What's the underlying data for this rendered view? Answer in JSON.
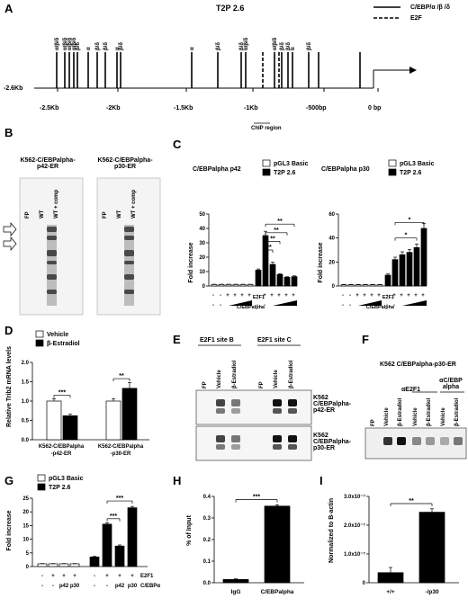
{
  "panelA": {
    "letter": "A",
    "title": "T2P 2.6",
    "legend_solid": "C/EBP/α /β /δ",
    "legend_dashed": "E2F",
    "start_label": "-2.6Kb",
    "axis_labels": [
      "-2.5Kb",
      "-2Kb",
      "-1.5Kb",
      "-1Kb",
      "-500bp",
      "0 bp"
    ],
    "chip_label": "ChIP region",
    "site_labels": [
      "α/β/δ",
      "α/β/δ",
      "α/β/δ",
      "α/β/δ",
      "β/δ",
      "α",
      "β/δ",
      "β/δ",
      "α",
      "β/δ",
      "α",
      "β/δ",
      "β/δ",
      "α/β/δ",
      "α/β/δ",
      "β/δ",
      "β/δ",
      "α",
      "β/δ"
    ]
  },
  "panelB": {
    "letter": "B",
    "blot1_title": "K562-C/EBPalpha-p42-ER",
    "blot2_title": "K562-C/EBPalpha-p30-ER",
    "lanes": [
      "FP",
      "WT",
      "WT + comp"
    ]
  },
  "panelC": {
    "letter": "C",
    "legend": [
      "pGL3 Basic",
      "T2P 2.6"
    ],
    "row_e2f1": "E2F1",
    "row_cebp": "C/EBPalpha",
    "chart_titles": [
      "C/EBPalpha p42",
      "C/EBPalpha p30"
    ],
    "ylabel": "Fold increase",
    "sig": [
      "**",
      "**",
      "**",
      "**",
      "*",
      "*"
    ]
  },
  "panelD": {
    "letter": "D",
    "legend": [
      "Vehicle",
      "β-Estradiol"
    ],
    "ylabel": "Relative Trib2 mRNA levels",
    "groups": [
      "K562-C/EBPalpha -p42-ER",
      "K562-C/EBPalpha -p30-ER"
    ],
    "sig": [
      "***",
      "**"
    ]
  },
  "panelE": {
    "letter": "E",
    "site_b": "E2F1 site B",
    "site_c": "E2F1 site C",
    "lanes": [
      "FP",
      "Vehicle",
      "β-Estradiol",
      "FP",
      "Vehicle",
      "β-Estradiol"
    ],
    "row1": "K562 C/EBPalpha- p42-ER",
    "row2": "K562 C/EBPalpha- p30-ER"
  },
  "panelF": {
    "letter": "F",
    "title": "K562 C/EBPalpha-p30-ER",
    "ab1": "αE2F1",
    "ab2": "αC/EBP alpha",
    "lanes": [
      "FP",
      "Vehicle",
      "β-Estradiol",
      "Vehicle",
      "β-Estradiol",
      "Vehicle",
      "β-Estradiol"
    ]
  },
  "panelG": {
    "letter": "G",
    "legend": [
      "pGL3 Basic",
      "T2P 2.6"
    ],
    "ylabel": "Fold increase",
    "row_e2f1_label": "E2F1",
    "row_cebp_label": "C/EBPα",
    "row_e2f1": [
      "-",
      "+",
      "+",
      "+",
      "-",
      "+",
      "+",
      "+"
    ],
    "row_cebp": [
      "-",
      "-",
      "p42",
      "p30",
      "-",
      "-",
      "p42",
      "p30"
    ],
    "sig": [
      "***",
      "***"
    ]
  },
  "panelH": {
    "letter": "H",
    "ylabel": "% of Input",
    "sig": "***"
  },
  "panelI": {
    "letter": "I",
    "ylabel": "Normalized to B-actin",
    "sig": "**"
  },
  "chart_data": [
    {
      "id": "C-p42",
      "type": "bar",
      "title": "C/EBPalpha p42",
      "ylabel": "Fold increase",
      "ylim": [
        0,
        50
      ],
      "yticks": [
        0,
        10,
        20,
        30,
        40,
        50
      ],
      "series": [
        {
          "name": "pGL3 Basic",
          "values": [
            1,
            1,
            1,
            1,
            1,
            1
          ]
        },
        {
          "name": "T2P 2.6",
          "values": [
            11,
            35,
            15,
            8,
            6,
            6.5
          ]
        }
      ],
      "errors": [
        [
          0.2,
          0.2,
          0.2,
          0.2,
          0.2,
          0.2
        ],
        [
          0.8,
          3,
          1.5,
          0.5,
          0.4,
          0.5
        ]
      ]
    },
    {
      "id": "C-p30",
      "type": "bar",
      "title": "C/EBPalpha p30",
      "ylabel": "Fold increase",
      "ylim": [
        0,
        60
      ],
      "yticks": [
        0,
        20,
        40,
        60
      ],
      "series": [
        {
          "name": "pGL3 Basic",
          "values": [
            1,
            1,
            1,
            1,
            1,
            1
          ]
        },
        {
          "name": "T2P 2.6",
          "values": [
            9,
            22,
            26,
            28,
            32,
            48
          ]
        }
      ],
      "errors": [
        [
          0.2,
          0.2,
          0.2,
          0.2,
          0.2,
          0.2
        ],
        [
          1,
          2,
          2.5,
          2.5,
          3,
          4
        ]
      ]
    },
    {
      "id": "D",
      "type": "bar",
      "ylabel": "Relative Trib2 mRNA levels",
      "ylim": [
        0,
        2.0
      ],
      "yticks": [
        0.0,
        0.5,
        1.0,
        1.5,
        2.0
      ],
      "categories": [
        "K562-C/EBPalpha -p42-ER",
        "K562-C/EBPalpha -p30-ER"
      ],
      "series": [
        {
          "name": "Vehicle",
          "values": [
            1.0,
            1.0
          ]
        },
        {
          "name": "β-Estradiol",
          "values": [
            0.62,
            1.33
          ]
        }
      ],
      "errors": [
        [
          0.06,
          0.06
        ],
        [
          0.04,
          0.15
        ]
      ]
    },
    {
      "id": "G",
      "type": "bar",
      "ylabel": "Fold increase",
      "ylim": [
        0,
        25
      ],
      "yticks": [
        0,
        5,
        10,
        15,
        20,
        25
      ],
      "series": [
        {
          "name": "pGL3 Basic",
          "values": [
            1,
            1,
            1,
            1
          ]
        },
        {
          "name": "T2P 2.6",
          "values": [
            3.5,
            15.5,
            7.5,
            21.5
          ]
        }
      ],
      "errors": [
        [
          0.1,
          0.1,
          0.1,
          0.1
        ],
        [
          0.2,
          0.5,
          0.4,
          0.5
        ]
      ]
    },
    {
      "id": "H",
      "type": "bar",
      "ylabel": "% of Input",
      "ylim": [
        0,
        0.4
      ],
      "yticks": [
        0.0,
        0.1,
        0.2,
        0.3,
        0.4
      ],
      "categories": [
        "IgG",
        "C/EBPalpha"
      ],
      "values": [
        0.015,
        0.355
      ],
      "errors": [
        0.003,
        0.006
      ]
    },
    {
      "id": "I",
      "type": "bar",
      "ylabel": "Normalized to B-actin",
      "ylim": [
        0,
        3e-07
      ],
      "yticks": [
        0,
        1e-07,
        2e-07,
        3e-07
      ],
      "ytick_labels": [
        "0",
        "1.0x10⁻⁷",
        "2.0x10⁻⁷",
        "3.0x10⁻⁷"
      ],
      "categories": [
        "+/+",
        "-/p30"
      ],
      "values": [
        3.5e-08,
        2.45e-07
      ],
      "errors": [
        1.8e-08,
        1.2e-08
      ]
    }
  ]
}
